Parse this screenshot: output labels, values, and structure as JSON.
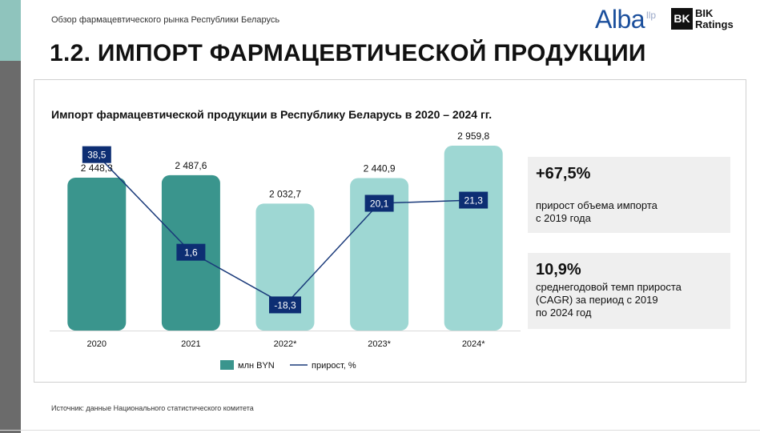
{
  "header": {
    "subtitle": "Обзор фармацевтического рынка Республики Беларусь",
    "title": "1.2. ИМПОРТ ФАРМАЦЕВТИЧЕСКОЙ ПРОДУКЦИИ"
  },
  "logos": {
    "alba": "Alba",
    "alba_suffix": "llp",
    "bik_mark": "BK",
    "bik_line1": "BIK",
    "bik_line2": "Ratings"
  },
  "colors": {
    "bar_dark": "#3a958d",
    "bar_light": "#9ed7d3",
    "line": "#1a3a7a",
    "label_box": "#0d2e73"
  },
  "chart_data": {
    "type": "bar",
    "title": "Импорт фармацевтической продукции в Республику Беларусь в 2020 – 2024 гг.",
    "categories": [
      "2020",
      "2021",
      "2022*",
      "2023*",
      "2024*"
    ],
    "series": [
      {
        "name": "млн BYN",
        "type": "bar",
        "values": [
          2448.3,
          2487.6,
          2032.7,
          2440.9,
          2959.8
        ],
        "labels": [
          "2 448,3",
          "2 487,6",
          "2 032,7",
          "2 440,9",
          "2 959,8"
        ],
        "styles": [
          "dark",
          "dark",
          "light",
          "light",
          "light"
        ]
      },
      {
        "name": "прирост, %",
        "type": "line",
        "values": [
          38.5,
          1.6,
          -18.3,
          20.1,
          21.3
        ],
        "labels": [
          "38,5",
          "1,6",
          "-18,3",
          "20,1",
          "21,3"
        ]
      }
    ],
    "ylim_bar": [
      0,
      3050
    ],
    "ylim_line": [
      -28,
      44
    ],
    "grid": false,
    "legend": "bottom"
  },
  "kpis": [
    {
      "value": "+67,5%",
      "text": "прирост объема импорта\nс 2019 года"
    },
    {
      "value": "10,9%",
      "text": "среднегодовой темп прироста\n(CAGR) за период с 2019\nпо 2024 год"
    }
  ],
  "footer": {
    "source": "Источник: данные Национального статистического комитета"
  }
}
